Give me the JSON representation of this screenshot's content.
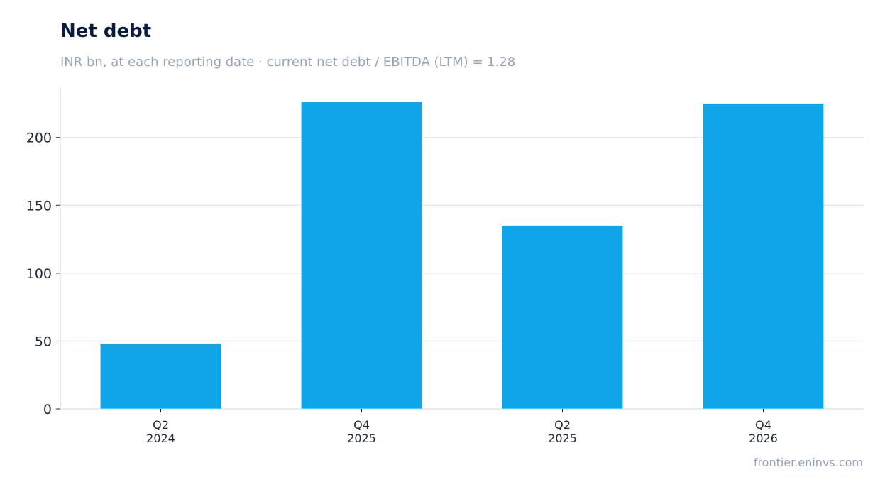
{
  "header": {
    "title": "Net debt",
    "subtitle": "INR bn, at each reporting date · current net debt / EBITDA (LTM) = 1.28"
  },
  "footer": {
    "source": "frontier.eninvs.com"
  },
  "colors": {
    "bar": "#10a5e8",
    "grid": "#e2e8f0",
    "axis": "#cbd5e1"
  },
  "chart_data": {
    "type": "bar",
    "categories": [
      [
        "Q2",
        "2024"
      ],
      [
        "Q4",
        "2025"
      ],
      [
        "Q2",
        "2025"
      ],
      [
        "Q4",
        "2026"
      ]
    ],
    "values": [
      48,
      226,
      135,
      225
    ],
    "ylim": [
      0,
      237
    ],
    "yticks": [
      0,
      50,
      100,
      150,
      200
    ],
    "grid": true,
    "legend": "none"
  }
}
